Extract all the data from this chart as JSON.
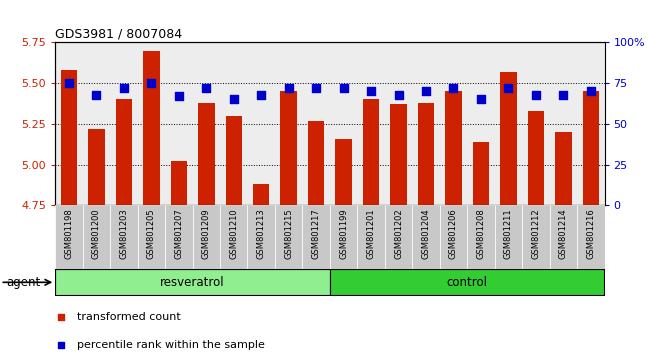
{
  "title": "GDS3981 / 8007084",
  "samples": [
    "GSM801198",
    "GSM801200",
    "GSM801203",
    "GSM801205",
    "GSM801207",
    "GSM801209",
    "GSM801210",
    "GSM801213",
    "GSM801215",
    "GSM801217",
    "GSM801199",
    "GSM801201",
    "GSM801202",
    "GSM801204",
    "GSM801206",
    "GSM801208",
    "GSM801211",
    "GSM801212",
    "GSM801214",
    "GSM801216"
  ],
  "transformed_count": [
    5.58,
    5.22,
    5.4,
    5.7,
    5.02,
    5.38,
    5.3,
    4.88,
    5.45,
    5.27,
    5.16,
    5.4,
    5.37,
    5.38,
    5.45,
    5.14,
    5.57,
    5.33,
    5.2,
    5.45
  ],
  "percentile_rank": [
    75,
    68,
    72,
    75,
    67,
    72,
    65,
    68,
    72,
    72,
    72,
    70,
    68,
    70,
    72,
    65,
    72,
    68,
    68,
    70
  ],
  "groups": [
    {
      "label": "resveratrol",
      "start": 0,
      "end": 10,
      "color": "#90ee90"
    },
    {
      "label": "control",
      "start": 10,
      "end": 20,
      "color": "#33cc33"
    }
  ],
  "bar_color": "#cc2200",
  "dot_color": "#0000cc",
  "ylim_left": [
    4.75,
    5.75
  ],
  "ylim_right": [
    0,
    100
  ],
  "yticks_left": [
    4.75,
    5.0,
    5.25,
    5.5,
    5.75
  ],
  "yticks_right": [
    0,
    25,
    50,
    75,
    100
  ],
  "ytick_labels_right": [
    "0",
    "25",
    "50",
    "75",
    "100%"
  ],
  "grid_values": [
    5.0,
    5.25,
    5.5
  ],
  "agent_label": "agent",
  "legend_items": [
    {
      "color": "#cc2200",
      "label": "transformed count",
      "marker": "s"
    },
    {
      "color": "#0000cc",
      "label": "percentile rank within the sample",
      "marker": "s"
    }
  ],
  "bar_width": 0.6,
  "dot_size": 40,
  "col_bg_color": "#cccccc",
  "col_bg_alpha": 0.35
}
